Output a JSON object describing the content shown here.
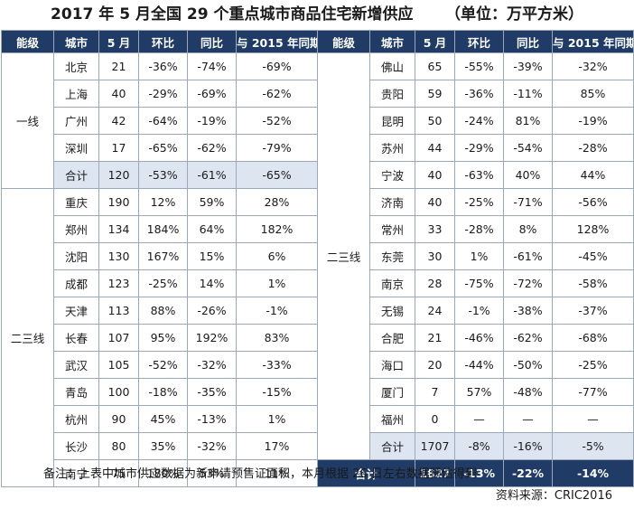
{
  "title": "2017 年 5 月全国 29 个重点城市商品住宅新增供应      （单位：万平方米）",
  "headers": [
    "能级",
    "城市",
    "5 月",
    "环比",
    "同比",
    "与 2015 年同期"
  ],
  "left_groups": [
    {
      "level": "一线",
      "rows": [
        [
          "北京",
          "21",
          "-36%",
          "-74%",
          "-69%"
        ],
        [
          "上海",
          "40",
          "-29%",
          "-69%",
          "-62%"
        ],
        [
          "广州",
          "42",
          "-64%",
          "-19%",
          "-52%"
        ],
        [
          "深圳",
          "17",
          "-65%",
          "-62%",
          "-79%"
        ],
        [
          "合计",
          "120",
          "-53%",
          "-61%",
          "-65%"
        ]
      ]
    },
    {
      "level": "二三线",
      "rows": [
        [
          "重庆",
          "190",
          "12%",
          "59%",
          "28%"
        ],
        [
          "郑州",
          "134",
          "184%",
          "64%",
          "182%"
        ],
        [
          "沈阳",
          "130",
          "167%",
          "15%",
          "6%"
        ],
        [
          "成都",
          "123",
          "-25%",
          "14%",
          "1%"
        ],
        [
          "天津",
          "113",
          "88%",
          "-26%",
          "-1%"
        ],
        [
          "长春",
          "107",
          "95%",
          "192%",
          "83%"
        ],
        [
          "武汉",
          "105",
          "-52%",
          "-32%",
          "-33%"
        ],
        [
          "青岛",
          "100",
          "-18%",
          "-35%",
          "-15%"
        ],
        [
          "杭州",
          "90",
          "45%",
          "-13%",
          "1%"
        ],
        [
          "长沙",
          "80",
          "35%",
          "-32%",
          "17%"
        ],
        [
          "南宁",
          "75",
          "180%",
          "53%",
          "11%"
        ]
      ]
    }
  ],
  "right_group": {
    "level": "二三线",
    "rows": [
      [
        "佛山",
        "65",
        "-55%",
        "-39%",
        "-32%"
      ],
      [
        "贵阳",
        "59",
        "-36%",
        "-11%",
        "85%"
      ],
      [
        "昆明",
        "50",
        "-24%",
        "81%",
        "-19%"
      ],
      [
        "苏州",
        "44",
        "-29%",
        "-54%",
        "-28%"
      ],
      [
        "宁波",
        "40",
        "-63%",
        "40%",
        "44%"
      ],
      [
        "济南",
        "40",
        "-25%",
        "-71%",
        "-56%"
      ],
      [
        "常州",
        "33",
        "-28%",
        "8%",
        "128%"
      ],
      [
        "东莞",
        "30",
        "1%",
        "-61%",
        "-45%"
      ],
      [
        "南京",
        "28",
        "-75%",
        "-72%",
        "-58%"
      ],
      [
        "无锡",
        "24",
        "-1%",
        "-38%",
        "-37%"
      ],
      [
        "合肥",
        "21",
        "-46%",
        "-62%",
        "-68%"
      ],
      [
        "海口",
        "20",
        "-44%",
        "-50%",
        "-25%"
      ],
      [
        "厦门",
        "7",
        "57%",
        "-48%",
        "-77%"
      ],
      [
        "福州",
        "0",
        "—",
        "—",
        "—"
      ],
      [
        "合计",
        "1707",
        "-8%",
        "-16%",
        "-5%"
      ]
    ]
  },
  "grand_total": [
    "合计",
    "1827",
    "-13%",
    "-22%",
    "-14%"
  ],
  "note": "备注：上表中城市供应数据为新申请预售证面积，本月根据 26 日左右数据预估得到",
  "source": "资料来源：CRIC2016"
}
